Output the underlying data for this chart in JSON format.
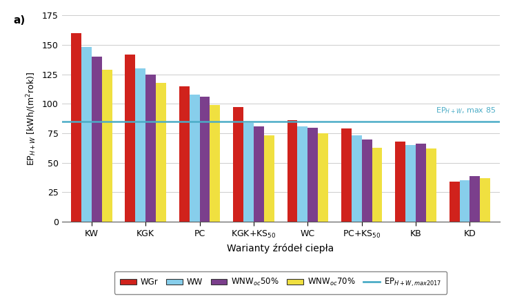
{
  "categories_plain": [
    "KW",
    "KGK",
    "PC",
    "KGK+KS50",
    "WC",
    "PC+KS50",
    "KB",
    "KD"
  ],
  "series": {
    "WGr": [
      160,
      142,
      115,
      97,
      86,
      79,
      68,
      34
    ],
    "WW": [
      148,
      130,
      108,
      84,
      81,
      73,
      65,
      35
    ],
    "WNW50": [
      140,
      125,
      106,
      81,
      80,
      70,
      66,
      39
    ],
    "WNW70": [
      129,
      118,
      99,
      73,
      75,
      63,
      62,
      37
    ]
  },
  "colors": {
    "WGr": "#d0221c",
    "WW": "#87ceeb",
    "WNW50": "#7b3f8c",
    "WNW70": "#f0e040"
  },
  "hline_y": 85,
  "hline_color": "#4bacc6",
  "hline_label": "EP$_{H+W,max 2017}$",
  "hline_annotation": "EP$_{H+W}$, max 85",
  "ylabel": "EP$_{H+W}$ [kWh/(m$^2$rok)]",
  "xlabel": "Warianty źródeł ciepła",
  "ylim": [
    0,
    175
  ],
  "yticks": [
    0,
    25,
    50,
    75,
    100,
    125,
    150,
    175
  ],
  "legend_labels": [
    "WGr",
    "WW",
    "WNW$_{oc}$50%",
    "WNW$_{oc}$70%"
  ],
  "tag": "a)",
  "bar_width": 0.19,
  "figsize": [
    7.47,
    4.46
  ],
  "dpi": 100
}
